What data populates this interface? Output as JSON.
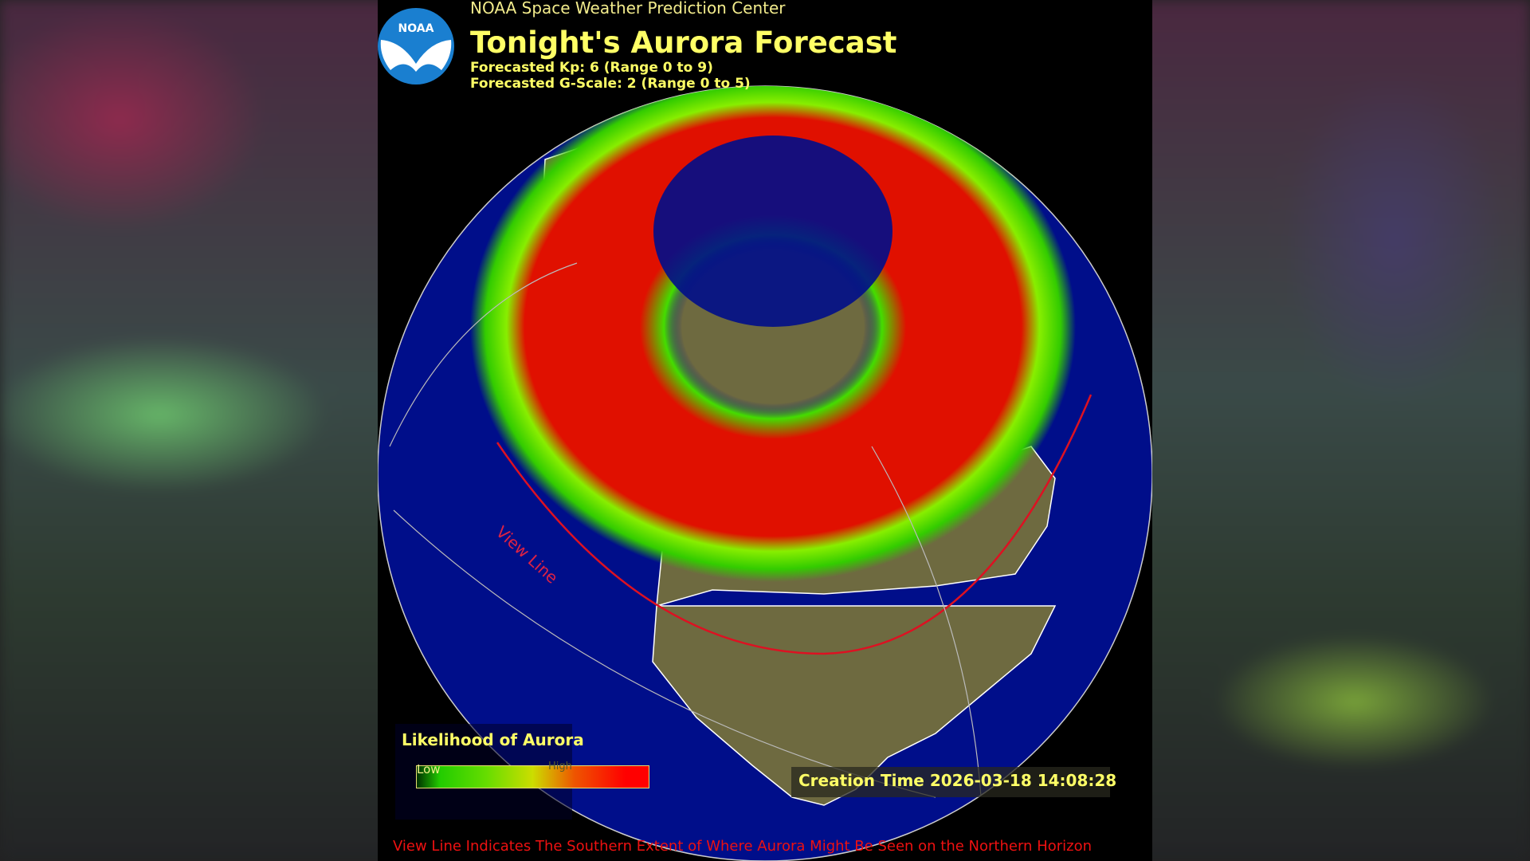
{
  "header": {
    "org": "NOAA Space Weather Prediction Center",
    "title": "Tonight's Aurora Forecast",
    "kp": "Forecasted Kp: 6 (Range 0 to 9)",
    "gscale": "Forecasted G-Scale: 2 (Range 0 to 5)",
    "logo_text": "NOAA"
  },
  "map": {
    "view_line_label": "View Line",
    "colors": {
      "ocean": "#000e8a",
      "land": "#6e6a40",
      "aurora_high": "#e01000",
      "aurora_low": "#33dd00",
      "view_line": "#dd1122"
    }
  },
  "legend": {
    "title": "Likelihood of Aurora",
    "low": "Low",
    "high": "High"
  },
  "creation_time": "Creation Time 2026-03-18 14:08:28",
  "footer": "View Line Indicates The Southern Extent of Where Aurora Might Be Seen on the Northern Horizon"
}
